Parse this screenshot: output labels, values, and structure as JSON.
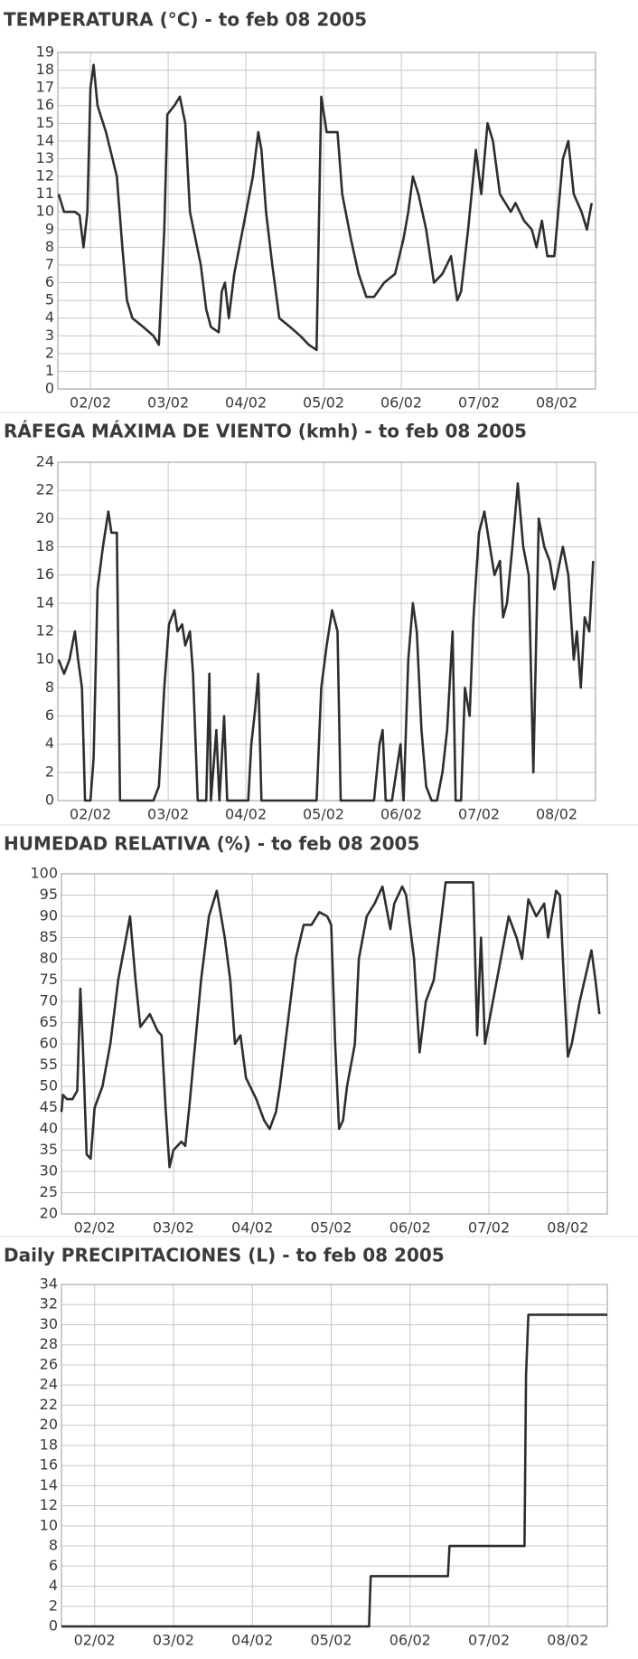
{
  "chart_data": [
    {
      "type": "line",
      "title": "TEMPERATURA (°C) - to feb 08 2005",
      "x": [
        1.59,
        1.66,
        1.8,
        1.86,
        1.91,
        1.96,
        2.0,
        2.04,
        2.09,
        2.2,
        2.34,
        2.41,
        2.47,
        2.54,
        2.68,
        2.81,
        2.88,
        2.95,
        2.99,
        3.08,
        3.15,
        3.22,
        3.28,
        3.42,
        3.49,
        3.55,
        3.65,
        3.69,
        3.73,
        3.78,
        3.85,
        3.96,
        4.09,
        4.16,
        4.2,
        4.26,
        4.34,
        4.43,
        4.57,
        4.7,
        4.81,
        4.91,
        4.97,
        5.04,
        5.18,
        5.24,
        5.35,
        5.45,
        5.55,
        5.65,
        5.78,
        5.92,
        6.03,
        6.09,
        6.15,
        6.22,
        6.32,
        6.42,
        6.53,
        6.64,
        6.72,
        6.77,
        6.86,
        6.96,
        7.03,
        7.11,
        7.18,
        7.27,
        7.41,
        7.47,
        7.58,
        7.68,
        7.74,
        7.81,
        7.88,
        7.97,
        8.08,
        8.15,
        8.22,
        8.32,
        8.39,
        8.45
      ],
      "values": [
        11,
        10,
        10,
        9.8,
        8,
        10,
        17,
        18.3,
        16,
        14.5,
        12,
        8,
        5,
        4,
        3.5,
        3,
        2.5,
        9,
        15.5,
        16,
        16.5,
        15,
        10,
        7,
        4.5,
        3.5,
        3.2,
        5.5,
        6,
        4,
        6.5,
        9,
        12,
        14.5,
        13.5,
        10,
        7,
        4,
        3.5,
        3,
        2.5,
        2.2,
        16.5,
        14.5,
        14.5,
        11,
        8.5,
        6.5,
        5.2,
        5.2,
        6,
        6.5,
        8.5,
        10,
        12,
        11,
        9,
        6,
        6.5,
        7.5,
        5,
        5.5,
        9,
        13.5,
        11,
        15,
        14,
        11,
        10,
        10.5,
        9.5,
        9,
        8,
        9.5,
        7.5,
        7.5,
        13,
        14,
        11,
        10,
        9,
        10.5
      ],
      "color": "#2e2e2e",
      "xlim": [
        1.58,
        8.5
      ],
      "ylim": [
        0,
        19
      ],
      "xticks": [
        {
          "value": 2,
          "label": "02/02"
        },
        {
          "value": 3,
          "label": "03/02"
        },
        {
          "value": 4,
          "label": "04/02"
        },
        {
          "value": 5,
          "label": "05/02"
        },
        {
          "value": 6,
          "label": "06/02"
        },
        {
          "value": 7,
          "label": "07/02"
        },
        {
          "value": 8,
          "label": "08/02"
        }
      ],
      "yticks": [
        0,
        1,
        2,
        3,
        4,
        5,
        6,
        7,
        8,
        9,
        10,
        11,
        12,
        13,
        14,
        15,
        16,
        17,
        18,
        19
      ],
      "grid": true
    },
    {
      "type": "line",
      "title": "RÁFEGA MÁXIMA DE VIENTO (kmh) - to feb 08 2005",
      "x": [
        1.59,
        1.66,
        1.73,
        1.8,
        1.84,
        1.89,
        1.93,
        2.0,
        2.04,
        2.09,
        2.16,
        2.23,
        2.27,
        2.34,
        2.38,
        2.47,
        2.81,
        2.88,
        2.95,
        3.01,
        3.08,
        3.12,
        3.18,
        3.22,
        3.28,
        3.32,
        3.38,
        3.49,
        3.53,
        3.55,
        3.62,
        3.66,
        3.72,
        3.76,
        4.03,
        4.07,
        4.12,
        4.16,
        4.2,
        4.3,
        4.91,
        4.97,
        5.04,
        5.11,
        5.18,
        5.22,
        5.31,
        5.65,
        5.72,
        5.76,
        5.8,
        5.88,
        5.99,
        6.03,
        6.09,
        6.15,
        6.2,
        6.26,
        6.32,
        6.39,
        6.46,
        6.53,
        6.59,
        6.66,
        6.7,
        6.77,
        6.82,
        6.88,
        6.93,
        7.0,
        7.07,
        7.14,
        7.2,
        7.27,
        7.31,
        7.36,
        7.43,
        7.5,
        7.57,
        7.64,
        7.7,
        7.77,
        7.84,
        7.91,
        7.97,
        8.08,
        8.15,
        8.22,
        8.26,
        8.31,
        8.36,
        8.42,
        8.47
      ],
      "values": [
        10,
        9,
        10,
        12,
        10,
        8,
        0,
        0,
        3,
        15,
        18,
        20.5,
        19,
        19,
        0,
        0,
        0,
        1,
        8,
        12.5,
        13.5,
        12,
        12.5,
        11,
        12,
        9,
        0,
        0,
        9,
        0,
        5,
        0,
        6,
        0,
        0,
        4,
        6.5,
        9,
        0,
        0,
        0,
        8,
        11,
        13.5,
        12,
        0,
        0,
        0,
        4,
        5,
        0,
        0,
        4,
        0,
        10,
        14,
        12,
        5,
        1,
        0,
        0,
        2,
        5,
        12,
        0,
        0,
        8,
        6,
        13,
        19,
        20.5,
        18,
        16,
        17,
        13,
        14,
        18,
        22.5,
        18,
        16,
        2,
        20,
        18,
        17,
        15,
        18,
        16,
        10,
        12,
        8,
        13,
        12,
        17
      ],
      "color": "#2e2e2e",
      "xlim": [
        1.58,
        8.5
      ],
      "ylim": [
        0,
        24
      ],
      "xticks": [
        {
          "value": 2,
          "label": "02/02"
        },
        {
          "value": 3,
          "label": "03/02"
        },
        {
          "value": 4,
          "label": "04/02"
        },
        {
          "value": 5,
          "label": "05/02"
        },
        {
          "value": 6,
          "label": "06/02"
        },
        {
          "value": 7,
          "label": "07/02"
        },
        {
          "value": 8,
          "label": "08/02"
        }
      ],
      "yticks": [
        0,
        2,
        4,
        6,
        8,
        10,
        12,
        14,
        16,
        18,
        20,
        22,
        24
      ],
      "grid": true
    },
    {
      "type": "line",
      "title": "HUMEDAD RELATIVA (%) - to feb 08 2005",
      "x": [
        1.58,
        1.6,
        1.65,
        1.72,
        1.78,
        1.82,
        1.85,
        1.9,
        1.95,
        2.0,
        2.1,
        2.2,
        2.3,
        2.4,
        2.45,
        2.52,
        2.58,
        2.7,
        2.8,
        2.85,
        2.9,
        2.95,
        3.0,
        3.1,
        3.15,
        3.2,
        3.35,
        3.45,
        3.55,
        3.65,
        3.72,
        3.78,
        3.85,
        3.92,
        4.05,
        4.15,
        4.22,
        4.3,
        4.35,
        4.45,
        4.55,
        4.65,
        4.75,
        4.85,
        4.95,
        5.0,
        5.05,
        5.1,
        5.15,
        5.2,
        5.3,
        5.35,
        5.45,
        5.55,
        5.65,
        5.75,
        5.8,
        5.9,
        5.95,
        6.05,
        6.12,
        6.2,
        6.3,
        6.4,
        6.45,
        6.6,
        6.8,
        6.85,
        6.9,
        6.95,
        7.05,
        7.15,
        7.25,
        7.35,
        7.42,
        7.5,
        7.6,
        7.7,
        7.75,
        7.85,
        7.9,
        7.95,
        8.0,
        8.05,
        8.15,
        8.25,
        8.3,
        8.35,
        8.4
      ],
      "values": [
        44,
        48,
        47,
        47,
        49,
        73,
        60,
        34,
        33,
        45,
        50,
        60,
        75,
        85,
        90,
        75,
        64,
        67,
        63,
        62,
        45,
        31,
        35,
        37,
        36,
        45,
        75,
        90,
        96,
        85,
        75,
        60,
        62,
        52,
        47,
        42,
        40,
        44,
        50,
        65,
        80,
        88,
        88,
        91,
        90,
        88,
        60,
        40,
        42,
        50,
        60,
        80,
        90,
        93,
        97,
        87,
        93,
        97,
        95,
        80,
        58,
        70,
        75,
        90,
        98,
        98,
        98,
        62,
        85,
        60,
        70,
        80,
        90,
        85,
        80,
        94,
        90,
        93,
        85,
        96,
        95,
        75,
        57,
        60,
        70,
        78,
        82,
        75,
        67
      ],
      "color": "#2e2e2e",
      "xlim": [
        1.58,
        8.5
      ],
      "ylim": [
        20,
        100
      ],
      "xticks": [
        {
          "value": 2,
          "label": "02/02"
        },
        {
          "value": 3,
          "label": "03/02"
        },
        {
          "value": 4,
          "label": "04/02"
        },
        {
          "value": 5,
          "label": "05/02"
        },
        {
          "value": 6,
          "label": "06/02"
        },
        {
          "value": 7,
          "label": "07/02"
        },
        {
          "value": 8,
          "label": "08/02"
        }
      ],
      "yticks": [
        20,
        25,
        30,
        35,
        40,
        45,
        50,
        55,
        60,
        65,
        70,
        75,
        80,
        85,
        90,
        95,
        100
      ],
      "grid": true
    },
    {
      "type": "line",
      "title": "Daily PRECIPITACIONES (L) - to feb 08 2005",
      "x": [
        1.58,
        5.48,
        5.5,
        6.48,
        6.5,
        7.45,
        7.47,
        7.5,
        8.5
      ],
      "values": [
        0,
        0,
        5,
        5,
        8,
        8,
        25,
        31,
        31
      ],
      "color": "#2e2e2e",
      "xlim": [
        1.58,
        8.5
      ],
      "ylim": [
        0,
        34
      ],
      "xticks": [
        {
          "value": 2,
          "label": "02/02"
        },
        {
          "value": 3,
          "label": "03/02"
        },
        {
          "value": 4,
          "label": "04/02"
        },
        {
          "value": 5,
          "label": "05/02"
        },
        {
          "value": 6,
          "label": "06/02"
        },
        {
          "value": 7,
          "label": "07/02"
        },
        {
          "value": 8,
          "label": "08/02"
        }
      ],
      "yticks": [
        0,
        2,
        4,
        6,
        8,
        10,
        12,
        14,
        16,
        18,
        20,
        22,
        24,
        26,
        28,
        30,
        32,
        34
      ],
      "grid": true
    }
  ]
}
